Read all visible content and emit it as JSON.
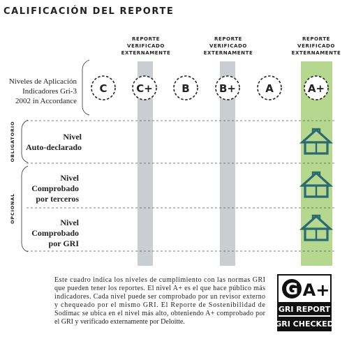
{
  "title": "CALIFICACIÓN DEL REPORTE",
  "column_header": [
    "REPORTE",
    "VERIFICADO",
    "EXTERNAMENTE"
  ],
  "levels_label": [
    "Niveles de Aplicación",
    "Indicadores Gri-3",
    "2002 in Accordance"
  ],
  "levels": [
    "C",
    "C+",
    "B",
    "B+",
    "A",
    "A+"
  ],
  "side_labels": [
    "OBLIGATORIO",
    "OPCIONAL"
  ],
  "rows": [
    [
      "Nivel",
      "Auto-declarado"
    ],
    [
      "Nivel",
      "Comprobado",
      "por terceros"
    ],
    [
      "Nivel",
      "Comprobado",
      "por GRI"
    ]
  ],
  "paragraph": [
    "Este cuadro indica los niveles de cumplimiento con las normas GRI",
    "que pueden tener los reportes. El nivel A+ es el que hace público más",
    "indicadores. Cada nivel puede ser comprobado por un revisor externo",
    "y chequeado por el mismo GRI. El Reporte de Sostenibilidad de",
    "Sodimac se ubica en el nivel más alto, obteniendo A+ comprobado por",
    "el GRI y verificado externamente por Deloitte."
  ],
  "badge": {
    "logo": "G",
    "level": "A+",
    "line1": "GRI REPORT",
    "line2": "GRI CHECKED"
  }
}
